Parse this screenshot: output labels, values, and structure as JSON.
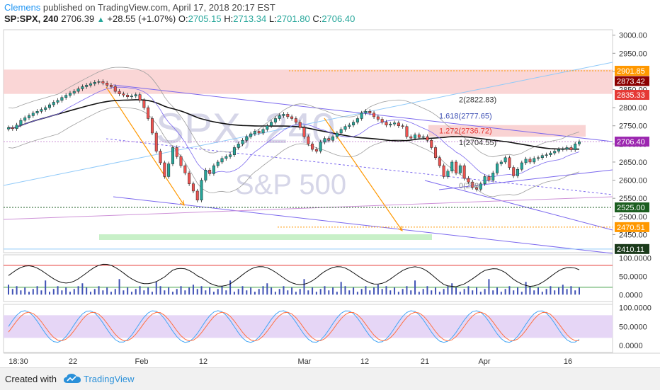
{
  "header": {
    "author": "Clemens",
    "published_text": "published on TradingView.com, April 17, 2018 20:17 EST",
    "symbol": "SP:SPX, 240",
    "last": "2706.39",
    "change": "+28.55 (+1.07%)",
    "o_label": "O:",
    "o_value": "2705.15",
    "h_label": "H:",
    "h_value": "2713.34",
    "l_label": "L:",
    "l_value": "2701.80",
    "c_label": "C:",
    "c_value": "2706.40"
  },
  "watermark": {
    "symbol": "SPX, 240",
    "name": "S&P 500"
  },
  "colors": {
    "up": "#26a69a",
    "down": "#ef5350",
    "fib": "#ff9800",
    "channel": "#7b68ee",
    "ma": "#111111",
    "bb": "#9e9e9e"
  },
  "chart_data": [
    {
      "type": "candlestick",
      "y_ticks": [
        3000,
        2950,
        2900,
        2850,
        2800,
        2750,
        2700,
        2650,
        2600,
        2550,
        2500,
        2450
      ],
      "ylim": [
        2400,
        3015
      ],
      "x_ticks": [
        "18:30",
        "22",
        "Feb",
        "12",
        "Mar",
        "12",
        "21",
        "Apr",
        "16"
      ],
      "price_tags": [
        {
          "label": "2901.85",
          "value": 2901.85,
          "color": "#ff9800"
        },
        {
          "label": "2873.42",
          "value": 2873.42,
          "color": "#8b0000"
        },
        {
          "label": "2835.33",
          "value": 2835.33,
          "color": "#e53935"
        },
        {
          "label": "2706.40",
          "value": 2706.4,
          "color": "#9c27b0"
        },
        {
          "label": "2525.00",
          "value": 2525.0,
          "color": "#1b5e20"
        },
        {
          "label": "2470.51",
          "value": 2470.51,
          "color": "#ff9800"
        },
        {
          "label": "2410.11",
          "value": 2410.11,
          "color": "#1b3a1b"
        }
      ],
      "fib_labels": [
        {
          "label": "2(2822.83)",
          "value": 2822.83,
          "color": "#333333"
        },
        {
          "label": "1.618(2777.65)",
          "value": 2777.65,
          "color": "#3f51b5"
        },
        {
          "label": "1.272(2736.72)",
          "value": 2736.72,
          "color": "#e53935"
        },
        {
          "label": "1(2704.55)",
          "value": 2704.55,
          "color": "#333333"
        },
        {
          "label": "0(258",
          "value": 2585,
          "color": "#888888"
        }
      ],
      "resistance_zone": [
        2838,
        2905
      ],
      "close_series": [
        2745,
        2742,
        2752,
        2765,
        2772,
        2778,
        2785,
        2790,
        2795,
        2800,
        2808,
        2815,
        2820,
        2828,
        2834,
        2840,
        2845,
        2852,
        2858,
        2862,
        2866,
        2870,
        2872,
        2868,
        2862,
        2858,
        2845,
        2838,
        2835,
        2830,
        2832,
        2836,
        2820,
        2800,
        2770,
        2730,
        2680,
        2648,
        2610,
        2645,
        2690,
        2665,
        2640,
        2620,
        2590,
        2570,
        2545,
        2600,
        2628,
        2618,
        2640,
        2650,
        2660,
        2665,
        2670,
        2690,
        2700,
        2710,
        2720,
        2728,
        2735,
        2730,
        2740,
        2750,
        2760,
        2770,
        2778,
        2782,
        2775,
        2770,
        2760,
        2745,
        2720,
        2700,
        2685,
        2680,
        2705,
        2715,
        2710,
        2720,
        2730,
        2740,
        2748,
        2752,
        2760,
        2770,
        2785,
        2790,
        2785,
        2775,
        2768,
        2760,
        2752,
        2755,
        2758,
        2750,
        2748,
        2720,
        2716,
        2725,
        2718,
        2720,
        2710,
        2690,
        2662,
        2640,
        2610,
        2625,
        2650,
        2620,
        2640,
        2605,
        2595,
        2580,
        2575,
        2590,
        2610,
        2600,
        2620,
        2645,
        2650,
        2662,
        2635,
        2612,
        2630,
        2648,
        2658,
        2650,
        2660,
        2662,
        2668,
        2670,
        2675,
        2680,
        2685,
        2686,
        2690,
        2684,
        2700,
        2706
      ]
    },
    {
      "type": "line",
      "panel": "oscillator-1",
      "y_ticks": [
        100,
        50,
        0
      ],
      "tick_labels": [
        "100.0000",
        "50.0000",
        "0.0000"
      ],
      "ylim": [
        -15,
        105
      ],
      "levels": [
        {
          "value": 80,
          "color": "#e53935"
        },
        {
          "value": 20,
          "color": "#43a047"
        }
      ]
    },
    {
      "type": "line",
      "panel": "stochastic",
      "y_ticks": [
        100,
        50,
        0
      ],
      "tick_labels": [
        "100.0000",
        "50.0000",
        "0.0000"
      ],
      "ylim": [
        -15,
        105
      ],
      "band": [
        20,
        80
      ]
    }
  ],
  "footer": {
    "created_with": "Created with",
    "brand": "TradingView"
  }
}
